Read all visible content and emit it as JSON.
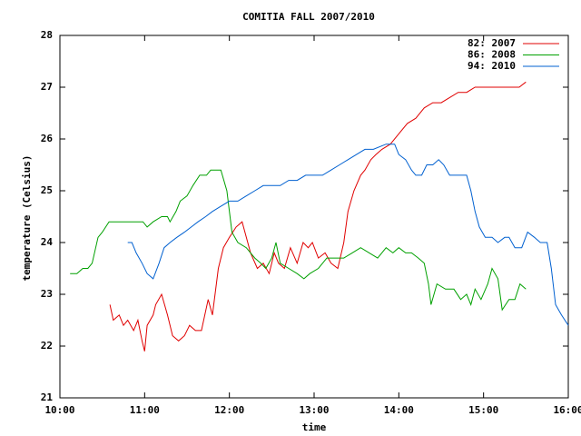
{
  "chart_data": {
    "type": "line",
    "title": "COMITIA FALL 2007/2010",
    "x_label": "time",
    "y_label": "temperature (Celsius)",
    "xlim": [
      10,
      16
    ],
    "xticks": [
      {
        "value": 10,
        "label": "10:00"
      },
      {
        "value": 11,
        "label": "11:00"
      },
      {
        "value": 12,
        "label": "12:00"
      },
      {
        "value": 13,
        "label": "13:00"
      },
      {
        "value": 14,
        "label": "14:00"
      },
      {
        "value": 15,
        "label": "15:00"
      },
      {
        "value": 16,
        "label": "16:00"
      }
    ],
    "ylim": [
      21,
      28
    ],
    "yticks": [
      21,
      22,
      23,
      24,
      25,
      26,
      27,
      28
    ],
    "grid": false,
    "legend": "top right",
    "series": [
      {
        "name": "82: 2007",
        "color": "#e00000",
        "x": [
          10.59,
          10.63,
          10.7,
          10.75,
          10.8,
          10.87,
          10.92,
          10.97,
          11.0,
          11.03,
          11.1,
          11.13,
          11.2,
          11.27,
          11.33,
          11.4,
          11.47,
          11.53,
          11.6,
          11.67,
          11.75,
          11.8,
          11.87,
          11.93,
          12.0,
          12.08,
          12.15,
          12.25,
          12.33,
          12.4,
          12.47,
          12.53,
          12.58,
          12.65,
          12.72,
          12.8,
          12.87,
          12.93,
          12.98,
          13.05,
          13.13,
          13.2,
          13.28,
          13.35,
          13.4,
          13.47,
          13.55,
          13.6,
          13.67,
          13.73,
          13.8,
          13.9,
          14.0,
          14.1,
          14.2,
          14.3,
          14.4,
          14.5,
          14.6,
          14.7,
          14.8,
          14.9,
          15.0,
          15.1,
          15.2,
          15.3,
          15.42,
          15.5
        ],
        "values": [
          22.8,
          22.5,
          22.6,
          22.4,
          22.5,
          22.3,
          22.5,
          22.1,
          21.9,
          22.4,
          22.6,
          22.8,
          23.0,
          22.6,
          22.2,
          22.1,
          22.2,
          22.4,
          22.3,
          22.3,
          22.9,
          22.6,
          23.5,
          23.9,
          24.1,
          24.3,
          24.4,
          23.8,
          23.5,
          23.6,
          23.4,
          23.8,
          23.6,
          23.5,
          23.9,
          23.6,
          24.0,
          23.9,
          24.0,
          23.7,
          23.8,
          23.6,
          23.5,
          24.0,
          24.6,
          25.0,
          25.3,
          25.4,
          25.6,
          25.7,
          25.8,
          25.9,
          26.1,
          26.3,
          26.4,
          26.6,
          26.7,
          26.7,
          26.8,
          26.9,
          26.9,
          27.0,
          27.0,
          27.0,
          27.0,
          27.0,
          27.0,
          27.1
        ]
      },
      {
        "name": "86: 2008",
        "color": "#00a000",
        "x": [
          10.12,
          10.2,
          10.27,
          10.33,
          10.38,
          10.45,
          10.5,
          10.58,
          10.7,
          10.8,
          10.9,
          10.98,
          11.03,
          11.1,
          11.2,
          11.27,
          11.3,
          11.37,
          11.42,
          11.5,
          11.57,
          11.65,
          11.73,
          11.78,
          11.9,
          11.97,
          12.03,
          12.1,
          12.2,
          12.3,
          12.37,
          12.43,
          12.5,
          12.55,
          12.6,
          12.7,
          12.8,
          12.88,
          12.95,
          13.05,
          13.15,
          13.25,
          13.35,
          13.45,
          13.55,
          13.65,
          13.75,
          13.85,
          13.93,
          14.0,
          14.08,
          14.15,
          14.23,
          14.3,
          14.35,
          14.38,
          14.45,
          14.55,
          14.65,
          14.73,
          14.8,
          14.85,
          14.9,
          14.97,
          15.05,
          15.1,
          15.17,
          15.22,
          15.3,
          15.37,
          15.43,
          15.5
        ],
        "values": [
          23.4,
          23.4,
          23.5,
          23.5,
          23.6,
          24.1,
          24.2,
          24.4,
          24.4,
          24.4,
          24.4,
          24.4,
          24.3,
          24.4,
          24.5,
          24.5,
          24.4,
          24.6,
          24.8,
          24.9,
          25.1,
          25.3,
          25.3,
          25.4,
          25.4,
          25.0,
          24.2,
          24.0,
          23.9,
          23.7,
          23.6,
          23.5,
          23.7,
          24.0,
          23.6,
          23.5,
          23.4,
          23.3,
          23.4,
          23.5,
          23.7,
          23.7,
          23.7,
          23.8,
          23.9,
          23.8,
          23.7,
          23.9,
          23.8,
          23.9,
          23.8,
          23.8,
          23.7,
          23.6,
          23.2,
          22.8,
          23.2,
          23.1,
          23.1,
          22.9,
          23.0,
          22.8,
          23.1,
          22.9,
          23.2,
          23.5,
          23.3,
          22.7,
          22.9,
          22.9,
          23.2,
          23.1
        ]
      },
      {
        "name": "94: 2010",
        "color": "#0060d0",
        "x": [
          10.8,
          10.85,
          10.9,
          10.97,
          11.03,
          11.1,
          11.17,
          11.23,
          11.3,
          11.38,
          11.47,
          11.55,
          11.63,
          11.72,
          11.8,
          11.9,
          12.0,
          12.1,
          12.2,
          12.3,
          12.4,
          12.5,
          12.6,
          12.7,
          12.8,
          12.9,
          13.0,
          13.1,
          13.2,
          13.3,
          13.4,
          13.5,
          13.6,
          13.7,
          13.85,
          13.95,
          14.0,
          14.08,
          14.15,
          14.2,
          14.27,
          14.33,
          14.4,
          14.47,
          14.53,
          14.6,
          14.7,
          14.8,
          14.85,
          14.9,
          14.95,
          15.02,
          15.1,
          15.17,
          15.25,
          15.3,
          15.37,
          15.45,
          15.52,
          15.6,
          15.67,
          15.75,
          15.8,
          15.85,
          15.92,
          16.0
        ],
        "values": [
          24.0,
          24.0,
          23.8,
          23.6,
          23.4,
          23.3,
          23.6,
          23.9,
          24.0,
          24.1,
          24.2,
          24.3,
          24.4,
          24.5,
          24.6,
          24.7,
          24.8,
          24.8,
          24.9,
          25.0,
          25.1,
          25.1,
          25.1,
          25.2,
          25.2,
          25.3,
          25.3,
          25.3,
          25.4,
          25.5,
          25.6,
          25.7,
          25.8,
          25.8,
          25.9,
          25.9,
          25.7,
          25.6,
          25.4,
          25.3,
          25.3,
          25.5,
          25.5,
          25.6,
          25.5,
          25.3,
          25.3,
          25.3,
          25.0,
          24.6,
          24.3,
          24.1,
          24.1,
          24.0,
          24.1,
          24.1,
          23.9,
          23.9,
          24.2,
          24.1,
          24.0,
          24.0,
          23.5,
          22.8,
          22.6,
          22.4
        ]
      }
    ]
  }
}
